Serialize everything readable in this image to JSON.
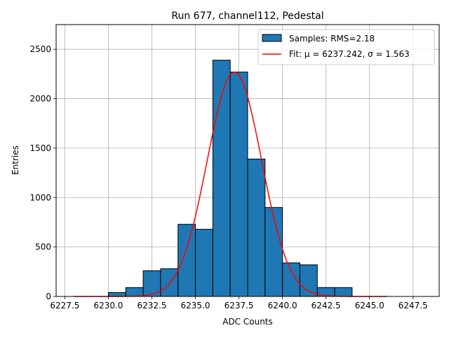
{
  "chart_data": {
    "type": "bar",
    "title": "Run 677, channel112, Pedestal",
    "xlabel": "ADC Counts",
    "ylabel": "Entries",
    "xlim": [
      6227.0,
      6249.0
    ],
    "ylim": [
      0,
      2750
    ],
    "grid": true,
    "legend_position": "top-right",
    "x_ticks": [
      6227.5,
      6230.0,
      6232.5,
      6235.0,
      6237.5,
      6240.0,
      6242.5,
      6245.0,
      6247.5
    ],
    "x_tick_labels": [
      "6227.5",
      "6230.0",
      "6232.5",
      "6235.0",
      "6237.5",
      "6240.0",
      "6242.5",
      "6245.0",
      "6247.5"
    ],
    "y_ticks": [
      0,
      500,
      1000,
      1500,
      2000,
      2500
    ],
    "y_tick_labels": [
      "0",
      "500",
      "1000",
      "1500",
      "2000",
      "2500"
    ],
    "histogram": {
      "name": "Samples: RMS=2.18",
      "color": "#1f77b4",
      "edgecolor": "#000000",
      "bins": [
        {
          "x0": 6230.0,
          "x1": 6231.0,
          "value": 40
        },
        {
          "x0": 6231.0,
          "x1": 6232.0,
          "value": 90
        },
        {
          "x0": 6232.0,
          "x1": 6233.0,
          "value": 260
        },
        {
          "x0": 6233.0,
          "x1": 6234.0,
          "value": 280
        },
        {
          "x0": 6234.0,
          "x1": 6235.0,
          "value": 730
        },
        {
          "x0": 6235.0,
          "x1": 6236.0,
          "value": 680
        },
        {
          "x0": 6236.0,
          "x1": 6237.0,
          "value": 2390
        },
        {
          "x0": 6237.0,
          "x1": 6238.0,
          "value": 2270
        },
        {
          "x0": 6238.0,
          "x1": 6239.0,
          "value": 1390
        },
        {
          "x0": 6239.0,
          "x1": 6240.0,
          "value": 900
        },
        {
          "x0": 6240.0,
          "x1": 6241.0,
          "value": 340
        },
        {
          "x0": 6241.0,
          "x1": 6242.0,
          "value": 320
        },
        {
          "x0": 6242.0,
          "x1": 6243.0,
          "value": 90
        },
        {
          "x0": 6243.0,
          "x1": 6244.0,
          "value": 90
        }
      ]
    },
    "fit": {
      "name": "Fit: μ = 6237.242, σ = 1.563",
      "color": "#ff0000",
      "mu": 6237.242,
      "sigma": 1.563,
      "amplitude": 2270,
      "x_range": [
        6228.0,
        6246.0
      ]
    }
  }
}
